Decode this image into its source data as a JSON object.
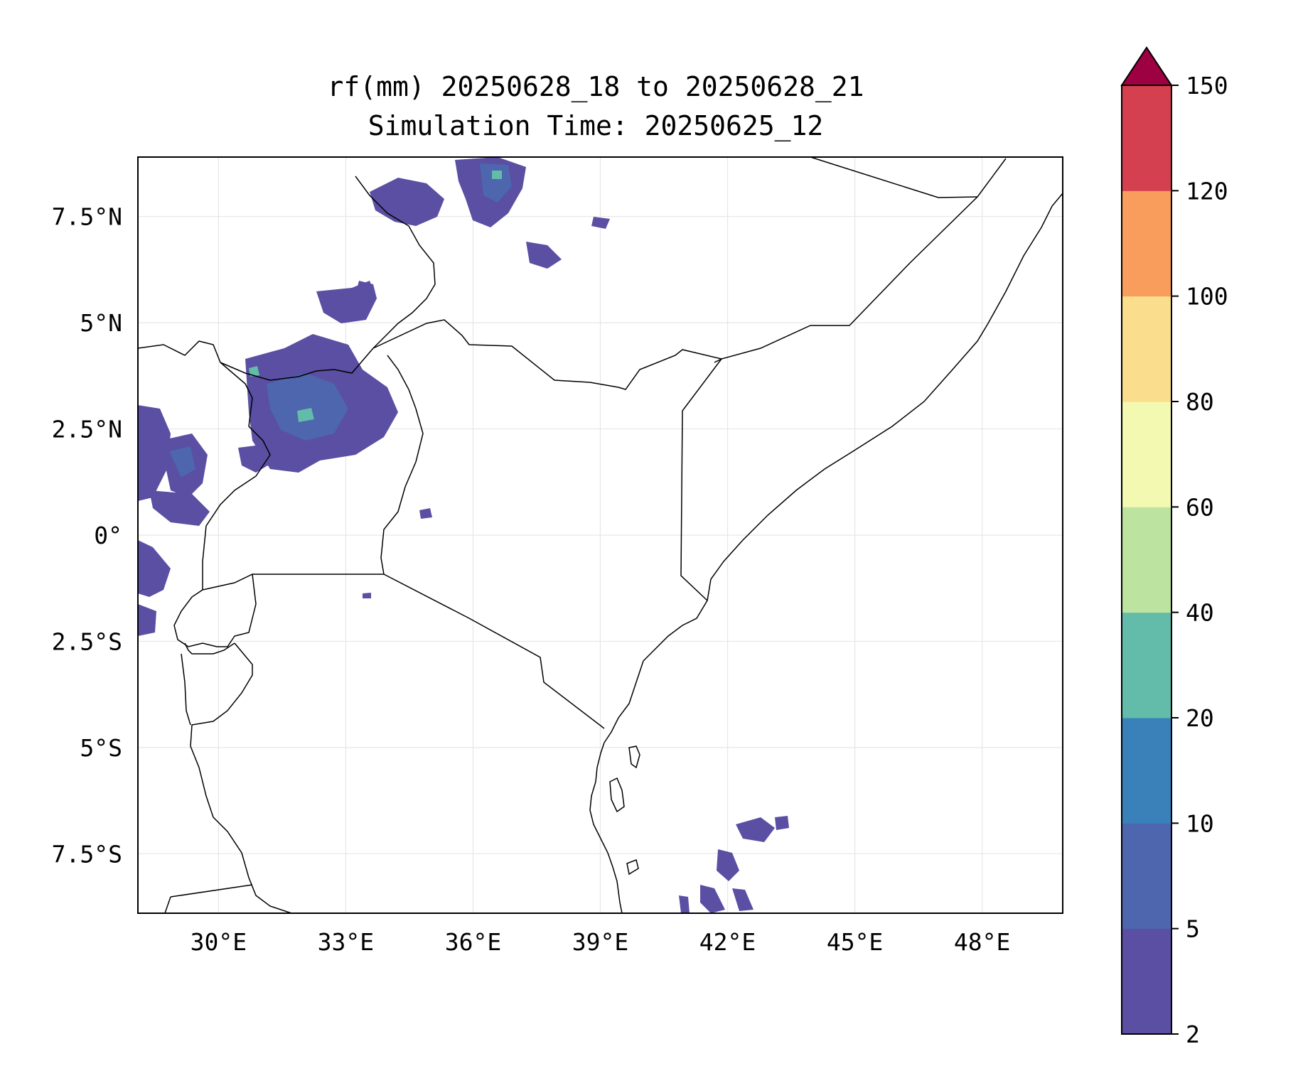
{
  "title": {
    "line1": "rf(mm) 20250628_18 to 20250628_21",
    "line2": "Simulation Time: 20250625_12"
  },
  "map": {
    "lon_range": [
      28.1,
      49.9
    ],
    "lat_range": [
      -8.9,
      8.9
    ],
    "x_ticks": [
      {
        "value": 30,
        "label": "30°E"
      },
      {
        "value": 33,
        "label": "33°E"
      },
      {
        "value": 36,
        "label": "36°E"
      },
      {
        "value": 39,
        "label": "39°E"
      },
      {
        "value": 42,
        "label": "42°E"
      },
      {
        "value": 45,
        "label": "45°E"
      },
      {
        "value": 48,
        "label": "48°E"
      }
    ],
    "y_ticks": [
      {
        "value": 7.5,
        "label": "7.5°N"
      },
      {
        "value": 5,
        "label": "5°N"
      },
      {
        "value": 2.5,
        "label": "2.5°N"
      },
      {
        "value": 0,
        "label": "0°"
      },
      {
        "value": -2.5,
        "label": "2.5°S"
      },
      {
        "value": -5,
        "label": "5°S"
      },
      {
        "value": -7.5,
        "label": "7.5°S"
      }
    ],
    "grid": true
  },
  "colorbar": {
    "levels": [
      2,
      5,
      10,
      20,
      40,
      60,
      80,
      100,
      120,
      150
    ],
    "colors": [
      "#5a4fa2",
      "#4d66ad",
      "#3a81ba",
      "#63bba9",
      "#bde3a0",
      "#f3f9b0",
      "#fbdd8e",
      "#f89d5b",
      "#d4404f"
    ],
    "extend_color": "#9e0142",
    "extend": "max",
    "tick_labels": [
      "2",
      "5",
      "10",
      "20",
      "40",
      "60",
      "80",
      "100",
      "120",
      "150"
    ]
  }
}
